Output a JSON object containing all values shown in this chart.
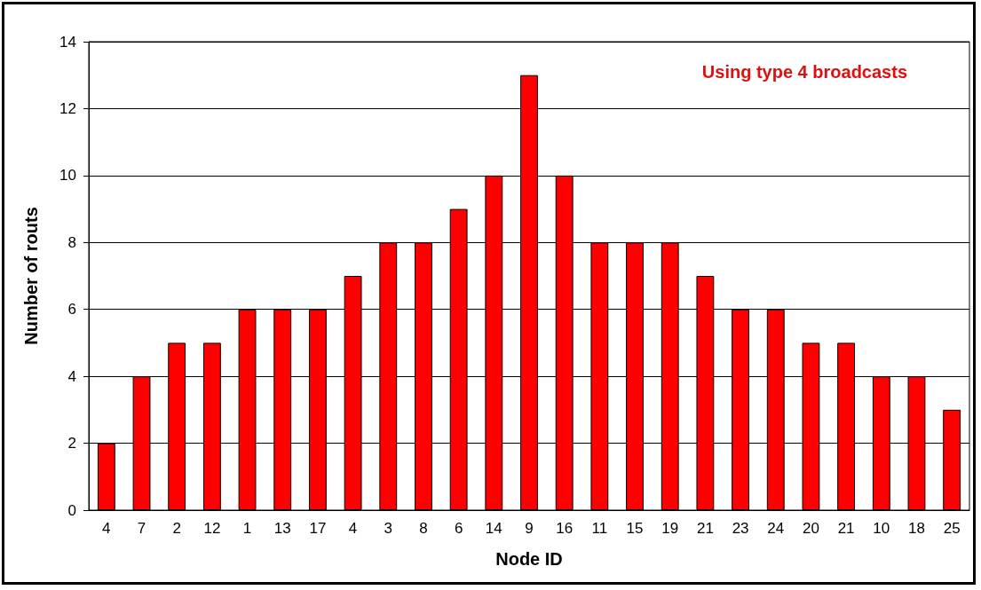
{
  "chart_data": {
    "type": "bar",
    "xlabel": "Node ID",
    "ylabel": "Number of routs",
    "annotations": [
      "Using type 4 broadcasts"
    ],
    "categories": [
      "4",
      "7",
      "2",
      "12",
      "1",
      "13",
      "17",
      "4",
      "3",
      "8",
      "6",
      "14",
      "9",
      "16",
      "11",
      "15",
      "19",
      "21",
      "23",
      "24",
      "20",
      "21",
      "10",
      "18",
      "25"
    ],
    "values": [
      2,
      4,
      5,
      5,
      6,
      6,
      6,
      7,
      8,
      8,
      9,
      10,
      13,
      10,
      8,
      8,
      8,
      7,
      6,
      6,
      5,
      5,
      4,
      4,
      3
    ],
    "color": "#ff0000",
    "ylim": [
      0,
      14
    ],
    "yticks": [
      0,
      2,
      4,
      6,
      8,
      10,
      12,
      14
    ],
    "grid": "y"
  }
}
